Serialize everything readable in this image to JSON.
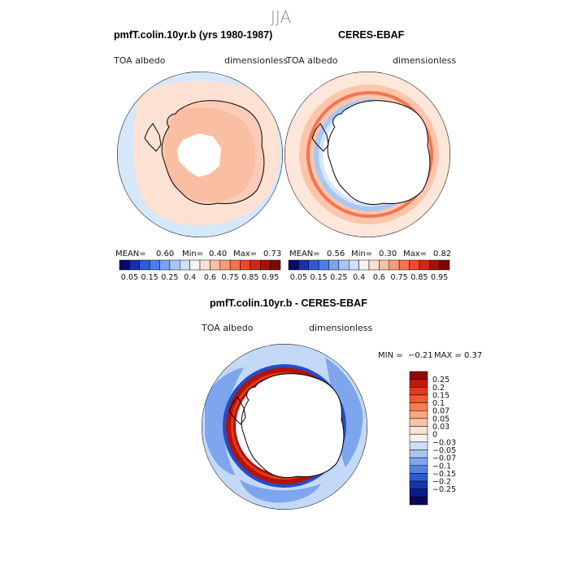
{
  "figure_title": "JJA",
  "colors": {
    "land_outline": "#000000",
    "ocean_background": "#ffffff"
  },
  "chart_data": [
    {
      "type": "heatmap",
      "panel": "model",
      "title": "pmfT.colin.10yr.b (yrs 1980-1987)",
      "left_label": "TOA albedo",
      "right_label": "dimensionless",
      "stats": {
        "mean_label": "MEAN=",
        "mean": "0.60",
        "min_label": "Min=",
        "min": "0.40",
        "max_label": "Max=",
        "max": "0.73"
      },
      "colorbar": {
        "tick_labels": [
          "0.05",
          "0.15",
          "0.25",
          "0.4",
          "0.6",
          "0.75",
          "0.85",
          "0.95"
        ],
        "colors": [
          "#08086b",
          "#1530a8",
          "#2e5ad6",
          "#4a7eea",
          "#7aa3f2",
          "#a8c6f7",
          "#d0e0fa",
          "#f5f5f5",
          "#fde0d2",
          "#fbc1a6",
          "#f79c7a",
          "#f47450",
          "#ec4a2a",
          "#cd2a14",
          "#a0140b",
          "#7a0a06"
        ]
      },
      "field": {
        "outer": "#d6e7fa",
        "mid": "#fde1d3",
        "inner": "#fbc7ad",
        "continent": "#f9b394",
        "pole": "#ffffff"
      }
    },
    {
      "type": "heatmap",
      "panel": "observations",
      "title": "CERES-EBAF",
      "left_label": "TOA albedo",
      "right_label": "dimensionless",
      "stats": {
        "mean_label": "MEAN=",
        "mean": "0.56",
        "min_label": "Min=",
        "min": "0.30",
        "max_label": "Max=",
        "max": "0.82"
      },
      "colorbar": {
        "tick_labels": [
          "0.05",
          "0.15",
          "0.25",
          "0.4",
          "0.6",
          "0.75",
          "0.85",
          "0.95"
        ],
        "colors": [
          "#08086b",
          "#1530a8",
          "#2e5ad6",
          "#4a7eea",
          "#7aa3f2",
          "#a8c6f7",
          "#d0e0fa",
          "#f5f5f5",
          "#fde0d2",
          "#fbc1a6",
          "#f79c7a",
          "#f47450",
          "#ec4a2a",
          "#cd2a14",
          "#a0140b",
          "#7a0a06"
        ]
      },
      "field": {
        "outer": "#fde7da",
        "band1": "#fcc5ac",
        "band2": "#f47450",
        "band3": "#fbc7ad",
        "ice_edge": "#a8c6f7",
        "ice_inner": "#d6e7fa",
        "continent": "#ffffff"
      }
    },
    {
      "type": "heatmap",
      "panel": "difference",
      "title": "pmfT.colin.10yr.b - CERES-EBAF",
      "left_label": "TOA albedo",
      "right_label": "dimensionless",
      "stats": {
        "min_label": "MIN =",
        "min": "−0.21",
        "max_label": "MAX =",
        "max": "0.37"
      },
      "colorbar": {
        "tick_labels": [
          "0.25",
          "0.2",
          "0.15",
          "0.1",
          "0.07",
          "0.05",
          "0.03",
          "0",
          "−0.03",
          "−0.05",
          "−0.07",
          "−0.1",
          "−0.15",
          "−0.2",
          "−0.25"
        ],
        "colors": [
          "#8c0a06",
          "#c2180c",
          "#e23a1c",
          "#f25a32",
          "#f57f55",
          "#f8a583",
          "#fbc4aa",
          "#fde2d4",
          "#f2f2f2",
          "#cddff8",
          "#a8c6f5",
          "#7ea6ee",
          "#5283e4",
          "#2c5ad2",
          "#1535b0",
          "#0a1a88",
          "#050a5a"
        ]
      },
      "field": {
        "outer": "#c4d9f7",
        "patch": "#7ea6ee",
        "dark_band": "#1f4fcf",
        "red_ring": "#b3130a",
        "red_inner": "#e23a1c",
        "continent": "#ffffff"
      }
    }
  ]
}
